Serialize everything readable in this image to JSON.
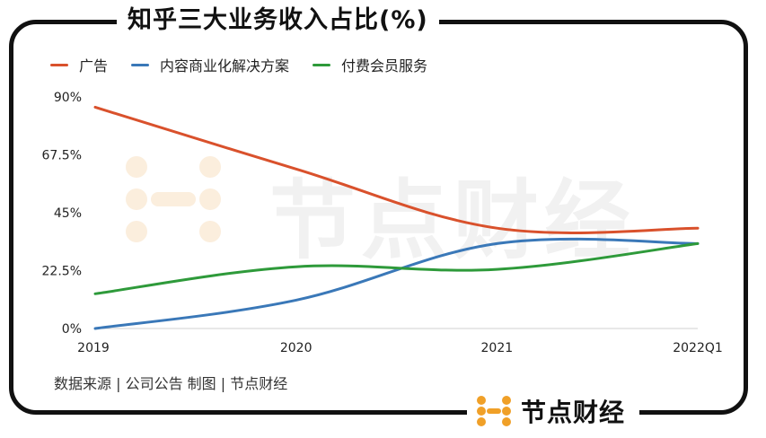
{
  "title": "知乎三大业务收入占比(%)",
  "legend": [
    {
      "label": "广告",
      "color": "#d9512c"
    },
    {
      "label": "内容商业化解决方案",
      "color": "#3a78b8"
    },
    {
      "label": "付费会员服务",
      "color": "#2e9a3a"
    }
  ],
  "source": "数据来源 | 公司公告   制图 | 节点财经",
  "brand": {
    "name": "节点财经"
  },
  "watermark": {
    "text": "节点财经"
  },
  "chart_data": {
    "type": "line",
    "title": "知乎三大业务收入占比(%)",
    "xlabel": "",
    "ylabel": "",
    "categories": [
      "2019",
      "2020",
      "2021",
      "2022Q1"
    ],
    "ylim": [
      0,
      90
    ],
    "yticks": [
      0,
      22.5,
      45,
      67.5,
      90
    ],
    "ytick_labels": [
      "0%",
      "22.5%",
      "45%",
      "67.5%",
      "90%"
    ],
    "legend_position": "top-left",
    "grid": false,
    "series": [
      {
        "name": "广告",
        "color": "#d9512c",
        "values": [
          86,
          62,
          39,
          39
        ]
      },
      {
        "name": "内容商业化解决方案",
        "color": "#3a78b8",
        "values": [
          0,
          11,
          33,
          33
        ]
      },
      {
        "name": "付费会员服务",
        "color": "#2e9a3a",
        "values": [
          13.5,
          24,
          23,
          33
        ]
      }
    ]
  }
}
